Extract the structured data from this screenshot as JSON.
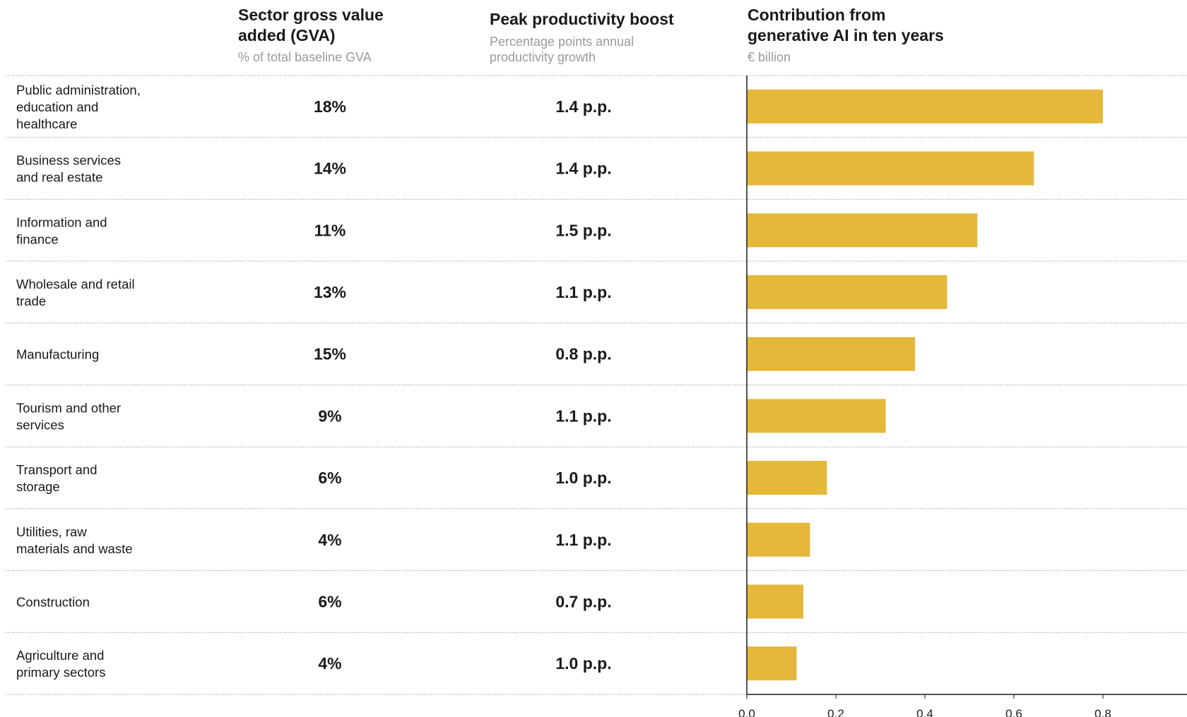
{
  "columns": [
    {
      "id": "gva",
      "title_lines": [
        "Sector gross value",
        "added (GVA)"
      ],
      "subtitle_lines": [
        "% of total baseline GVA"
      ]
    },
    {
      "id": "boost",
      "title_lines": [
        "Peak productivity boost"
      ],
      "subtitle_lines": [
        "Percentage points annual",
        "productivity growth"
      ]
    },
    {
      "id": "contribution",
      "title_lines": [
        "Contribution from",
        "generative AI in ten years"
      ],
      "subtitle_lines": [
        "€ billion"
      ]
    }
  ],
  "chart_data": {
    "type": "bar",
    "orientation": "horizontal",
    "categories": [
      "Public administration, education and healthcare",
      "Business services and real estate",
      "Information and finance",
      "Wholesale and retail trade",
      "Manufacturing",
      "Tourism and other services",
      "Transport and storage",
      "Utilities, raw materials and waste",
      "Construction",
      "Agriculture and primary sectors"
    ],
    "category_label_lines": [
      [
        "Public administration,",
        "education and",
        "healthcare"
      ],
      [
        "Business services",
        "and real estate"
      ],
      [
        "Information and",
        "finance"
      ],
      [
        "Wholesale and retail",
        "trade"
      ],
      [
        "Manufacturing"
      ],
      [
        "Tourism and other",
        "services"
      ],
      [
        "Transport and",
        "storage"
      ],
      [
        "Utilities, raw",
        "materials and waste"
      ],
      [
        "Construction"
      ],
      [
        "Agriculture and",
        "primary sectors"
      ]
    ],
    "gva_share": [
      "18%",
      "14%",
      "11%",
      "13%",
      "15%",
      "9%",
      "6%",
      "4%",
      "6%",
      "4%"
    ],
    "productivity_boost": [
      "1.4 p.p.",
      "1.4 p.p.",
      "1.5 p.p.",
      "1.1 p.p.",
      "0.8 p.p.",
      "1.1 p.p.",
      "1.0 p.p.",
      "1.1 p.p.",
      "0.7 p.p.",
      "1.0 p.p."
    ],
    "values": [
      0.8,
      0.645,
      0.518,
      0.45,
      0.378,
      0.312,
      0.18,
      0.142,
      0.127,
      0.112
    ],
    "xlim": [
      0,
      0.98
    ],
    "xticks": [
      0.0,
      0.2,
      0.4,
      0.6,
      0.8
    ],
    "xtick_labels": [
      "0.0",
      "0.2",
      "0.4",
      "0.6",
      "0.8"
    ],
    "bar_color": "#E5B83B",
    "grid": false
  }
}
